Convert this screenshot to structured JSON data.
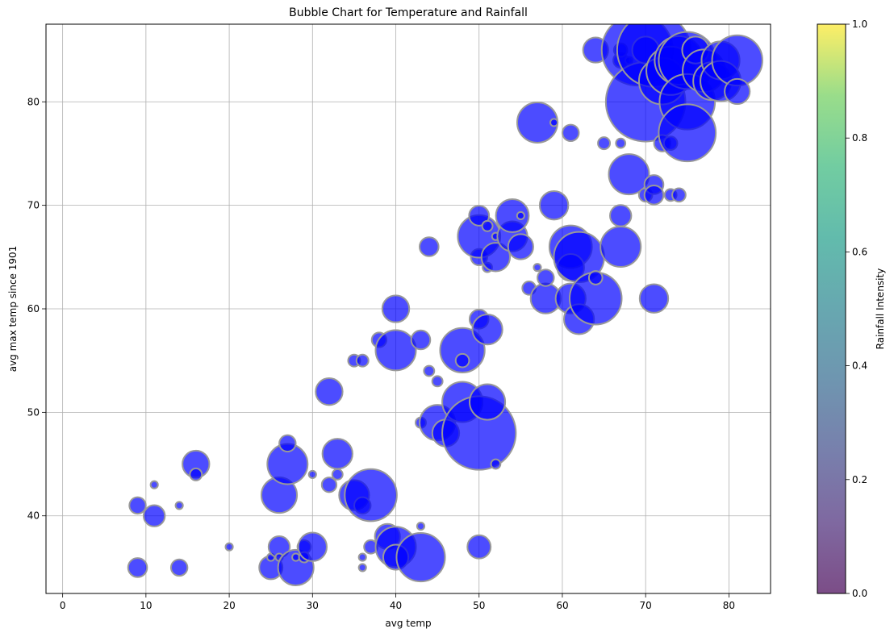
{
  "chart_data": {
    "type": "scatter",
    "title": "Bubble Chart for Temperature and Rainfall",
    "xlabel": "avg temp",
    "ylabel": "avg max temp since 1901",
    "xlim": [
      -2,
      85
    ],
    "ylim": [
      32.5,
      87.5
    ],
    "xticks": [
      0,
      10,
      20,
      30,
      40,
      50,
      60,
      70,
      80
    ],
    "yticks": [
      40,
      50,
      60,
      70,
      80
    ],
    "grid": true,
    "marker_color": "#0000ff",
    "marker_edge_color": "#999999",
    "colorbar": {
      "label": "Rainfall Intensity",
      "range": [
        0,
        1
      ],
      "ticks": [
        "0.0",
        "0.2",
        "0.4",
        "0.6",
        "0.8",
        "1.0"
      ],
      "colormap": "viridis"
    },
    "series": [
      {
        "points": [
          {
            "x": 9,
            "y": 35,
            "size": 200
          },
          {
            "x": 9,
            "y": 41,
            "size": 150
          },
          {
            "x": 11,
            "y": 40,
            "size": 250
          },
          {
            "x": 11,
            "y": 43,
            "size": 30
          },
          {
            "x": 14,
            "y": 35,
            "size": 150
          },
          {
            "x": 14,
            "y": 41,
            "size": 30
          },
          {
            "x": 16,
            "y": 45,
            "size": 400
          },
          {
            "x": 16,
            "y": 44,
            "size": 80
          },
          {
            "x": 20,
            "y": 37,
            "size": 30
          },
          {
            "x": 25,
            "y": 35,
            "size": 300
          },
          {
            "x": 25,
            "y": 36,
            "size": 30
          },
          {
            "x": 26,
            "y": 37,
            "size": 250
          },
          {
            "x": 26,
            "y": 42,
            "size": 700
          },
          {
            "x": 26,
            "y": 36,
            "size": 30
          },
          {
            "x": 27,
            "y": 45,
            "size": 900
          },
          {
            "x": 27,
            "y": 47,
            "size": 150
          },
          {
            "x": 28,
            "y": 35,
            "size": 700
          },
          {
            "x": 28,
            "y": 36,
            "size": 30
          },
          {
            "x": 29,
            "y": 37,
            "size": 100
          },
          {
            "x": 29,
            "y": 36,
            "size": 60
          },
          {
            "x": 30,
            "y": 37,
            "size": 450
          },
          {
            "x": 30,
            "y": 44,
            "size": 30
          },
          {
            "x": 32,
            "y": 43,
            "size": 120
          },
          {
            "x": 32,
            "y": 52,
            "size": 400
          },
          {
            "x": 33,
            "y": 46,
            "size": 500
          },
          {
            "x": 33,
            "y": 44,
            "size": 60
          },
          {
            "x": 35,
            "y": 42,
            "size": 500
          },
          {
            "x": 35,
            "y": 55,
            "size": 80
          },
          {
            "x": 36,
            "y": 55,
            "size": 80
          },
          {
            "x": 36,
            "y": 41,
            "size": 150
          },
          {
            "x": 36,
            "y": 36,
            "size": 30
          },
          {
            "x": 36,
            "y": 35,
            "size": 30
          },
          {
            "x": 37,
            "y": 42,
            "size": 1500
          },
          {
            "x": 37,
            "y": 37,
            "size": 100
          },
          {
            "x": 38,
            "y": 57,
            "size": 120
          },
          {
            "x": 39,
            "y": 38,
            "size": 350
          },
          {
            "x": 40,
            "y": 37,
            "size": 900
          },
          {
            "x": 40,
            "y": 36,
            "size": 350
          },
          {
            "x": 40,
            "y": 56,
            "size": 900
          },
          {
            "x": 40,
            "y": 60,
            "size": 400
          },
          {
            "x": 43,
            "y": 36,
            "size": 1300
          },
          {
            "x": 43,
            "y": 39,
            "size": 30
          },
          {
            "x": 43,
            "y": 49,
            "size": 60
          },
          {
            "x": 43,
            "y": 57,
            "size": 200
          },
          {
            "x": 44,
            "y": 54,
            "size": 60
          },
          {
            "x": 44,
            "y": 66,
            "size": 200
          },
          {
            "x": 45,
            "y": 49,
            "size": 700
          },
          {
            "x": 45,
            "y": 53,
            "size": 60
          },
          {
            "x": 46,
            "y": 48,
            "size": 400
          },
          {
            "x": 48,
            "y": 51,
            "size": 900
          },
          {
            "x": 48,
            "y": 56,
            "size": 1100
          },
          {
            "x": 48,
            "y": 55,
            "size": 100
          },
          {
            "x": 50,
            "y": 48,
            "size": 3000
          },
          {
            "x": 50,
            "y": 37,
            "size": 300
          },
          {
            "x": 50,
            "y": 59,
            "size": 200
          },
          {
            "x": 50,
            "y": 65,
            "size": 150
          },
          {
            "x": 50,
            "y": 67,
            "size": 1000
          },
          {
            "x": 50,
            "y": 69,
            "size": 220
          },
          {
            "x": 51,
            "y": 51,
            "size": 700
          },
          {
            "x": 51,
            "y": 58,
            "size": 500
          },
          {
            "x": 51,
            "y": 64,
            "size": 50
          },
          {
            "x": 51,
            "y": 68,
            "size": 60
          },
          {
            "x": 52,
            "y": 45,
            "size": 50
          },
          {
            "x": 52,
            "y": 65,
            "size": 450
          },
          {
            "x": 52,
            "y": 67,
            "size": 30
          },
          {
            "x": 54,
            "y": 67,
            "size": 500
          },
          {
            "x": 54,
            "y": 69,
            "size": 600
          },
          {
            "x": 55,
            "y": 66,
            "size": 350
          },
          {
            "x": 55,
            "y": 69,
            "size": 30
          },
          {
            "x": 56,
            "y": 62,
            "size": 100
          },
          {
            "x": 57,
            "y": 64,
            "size": 30
          },
          {
            "x": 57,
            "y": 78,
            "size": 900
          },
          {
            "x": 58,
            "y": 61,
            "size": 500
          },
          {
            "x": 58,
            "y": 63,
            "size": 150
          },
          {
            "x": 59,
            "y": 70,
            "size": 450
          },
          {
            "x": 59,
            "y": 78,
            "size": 30
          },
          {
            "x": 61,
            "y": 66,
            "size": 1000
          },
          {
            "x": 61,
            "y": 64,
            "size": 400
          },
          {
            "x": 61,
            "y": 61,
            "size": 500
          },
          {
            "x": 61,
            "y": 77,
            "size": 150
          },
          {
            "x": 62,
            "y": 65,
            "size": 1400
          },
          {
            "x": 62,
            "y": 59,
            "size": 500
          },
          {
            "x": 64,
            "y": 61,
            "size": 1500
          },
          {
            "x": 64,
            "y": 63,
            "size": 100
          },
          {
            "x": 64,
            "y": 85,
            "size": 350
          },
          {
            "x": 65,
            "y": 76,
            "size": 80
          },
          {
            "x": 67,
            "y": 66,
            "size": 900
          },
          {
            "x": 67,
            "y": 69,
            "size": 250
          },
          {
            "x": 67,
            "y": 76,
            "size": 50
          },
          {
            "x": 67,
            "y": 84,
            "size": 120
          },
          {
            "x": 67,
            "y": 85,
            "size": 100
          },
          {
            "x": 68,
            "y": 73,
            "size": 900
          },
          {
            "x": 68,
            "y": 84,
            "size": 30
          },
          {
            "x": 69,
            "y": 85,
            "size": 2800
          },
          {
            "x": 70,
            "y": 80,
            "size": 3500
          },
          {
            "x": 70,
            "y": 85,
            "size": 400
          },
          {
            "x": 70,
            "y": 71,
            "size": 100
          },
          {
            "x": 71,
            "y": 85,
            "size": 3000
          },
          {
            "x": 71,
            "y": 72,
            "size": 200
          },
          {
            "x": 71,
            "y": 71,
            "size": 200
          },
          {
            "x": 71,
            "y": 61,
            "size": 450
          },
          {
            "x": 72,
            "y": 82,
            "size": 1200
          },
          {
            "x": 72,
            "y": 76,
            "size": 150
          },
          {
            "x": 73,
            "y": 83,
            "size": 1300
          },
          {
            "x": 73,
            "y": 76,
            "size": 100
          },
          {
            "x": 73,
            "y": 71,
            "size": 80
          },
          {
            "x": 74,
            "y": 84,
            "size": 1300
          },
          {
            "x": 74,
            "y": 71,
            "size": 100
          },
          {
            "x": 75,
            "y": 84,
            "size": 1800
          },
          {
            "x": 75,
            "y": 80,
            "size": 1700
          },
          {
            "x": 75,
            "y": 77,
            "size": 1800
          },
          {
            "x": 76,
            "y": 85,
            "size": 400
          },
          {
            "x": 77,
            "y": 83,
            "size": 1000
          },
          {
            "x": 78,
            "y": 82,
            "size": 800
          },
          {
            "x": 79,
            "y": 84,
            "size": 800
          },
          {
            "x": 79,
            "y": 82,
            "size": 900
          },
          {
            "x": 81,
            "y": 84,
            "size": 1400
          },
          {
            "x": 81,
            "y": 81,
            "size": 350
          }
        ]
      }
    ]
  }
}
